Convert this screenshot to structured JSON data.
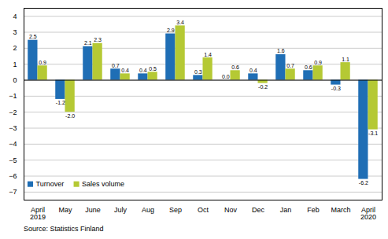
{
  "chart_data": {
    "type": "bar",
    "categories": [
      "April\n2019",
      "May",
      "June",
      "July",
      "Aug",
      "Sep",
      "Oct",
      "Nov",
      "Dec",
      "Jan",
      "Feb",
      "March",
      "April\n2020"
    ],
    "series": [
      {
        "name": "Turnover",
        "color": "#1f6eb5",
        "values": [
          2.5,
          -1.2,
          2.1,
          0.7,
          0.4,
          2.9,
          0.3,
          0.0,
          0.4,
          1.6,
          0.6,
          -0.3,
          -6.2
        ],
        "value_labels": [
          "2.5",
          "-1.2",
          "2.1",
          "0.7",
          "0.4",
          "2.9",
          "0.3",
          "0.0",
          "0.4",
          "1.6",
          "0.6",
          "-0.3",
          "-6.2"
        ]
      },
      {
        "name": "Sales volume",
        "color": "#b5c934",
        "values": [
          0.9,
          -2.0,
          2.3,
          0.4,
          0.5,
          3.4,
          1.4,
          0.6,
          -0.2,
          0.7,
          0.9,
          1.1,
          -3.1
        ],
        "value_labels": [
          "0.9",
          "-2.0",
          "2.3",
          "0.4",
          "0.5",
          "3.4",
          "1.4",
          "0.6",
          "-0.2",
          "0.7",
          "0.9",
          "1.1",
          "-3.1"
        ]
      }
    ],
    "ylim": [
      -7.5,
      4.5
    ],
    "yticks": [
      -7,
      -6,
      -5,
      -4,
      -3,
      -2,
      -1,
      0,
      1,
      2,
      3,
      4
    ],
    "grid": true,
    "legend": "lower left",
    "data_labels": true,
    "caption": "Source: Statistics Finland"
  }
}
